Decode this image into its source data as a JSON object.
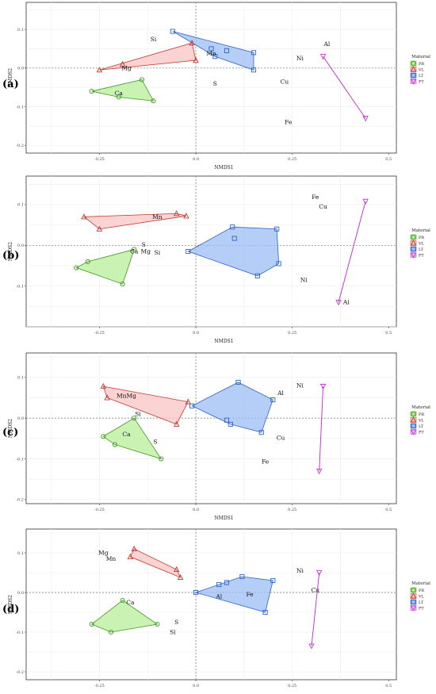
{
  "legend": {
    "title": "Material",
    "items": [
      {
        "label": "PR",
        "shape": "circle",
        "stroke": "#3e9a1e",
        "fill": "#b8ef9a"
      },
      {
        "label": "VL",
        "shape": "triangle",
        "stroke": "#c0392b",
        "fill": "#fbc4c4"
      },
      {
        "label": "LT",
        "shape": "square",
        "stroke": "#2e63c8",
        "fill": "#9cbdf5"
      },
      {
        "label": "PT",
        "shape": "triangle-down",
        "stroke": "#bf3fd0",
        "fill": "#e9b6f2"
      }
    ]
  },
  "chart_data": [
    {
      "panel_label": "(a)",
      "type": "scatter",
      "xlabel": "NMDS1",
      "ylabel": "NMDS2",
      "xlim": [
        -0.44,
        0.52
      ],
      "ylim": [
        -0.22,
        0.17
      ],
      "x_ticks": [
        "-0.25",
        "0.0",
        "0.25",
        "0.5"
      ],
      "x_tick_values": [
        -0.25,
        0,
        0.25,
        0.5
      ],
      "y_ticks": [
        "0.1",
        "0.0",
        "-0.1",
        "-0.2"
      ],
      "y_tick_values": [
        0.1,
        0,
        -0.1,
        -0.2
      ],
      "series": [
        {
          "name": "PR",
          "points": [
            [
              -0.27,
              -0.06
            ],
            [
              -0.2,
              -0.075
            ],
            [
              -0.14,
              -0.03
            ],
            [
              -0.11,
              -0.085
            ]
          ]
        },
        {
          "name": "VL",
          "points": [
            [
              -0.25,
              -0.005
            ],
            [
              -0.19,
              0.01
            ],
            [
              -0.01,
              0.065
            ],
            [
              0.0,
              0.02
            ]
          ]
        },
        {
          "name": "LT",
          "points": [
            [
              -0.06,
              0.095
            ],
            [
              0.04,
              0.05
            ],
            [
              0.05,
              0.03
            ],
            [
              0.08,
              0.045
            ],
            [
              0.15,
              0.04
            ],
            [
              0.15,
              -0.005
            ]
          ]
        },
        {
          "name": "PT",
          "points": [
            [
              0.33,
              0.03
            ],
            [
              0.44,
              -0.13
            ]
          ]
        }
      ],
      "labels": [
        {
          "text": "Si",
          "x": -0.11,
          "y": 0.075
        },
        {
          "text": "Mg",
          "x": -0.18,
          "y": 0.0
        },
        {
          "text": "Ca",
          "x": -0.2,
          "y": -0.065
        },
        {
          "text": "Mn",
          "x": 0.04,
          "y": 0.038
        },
        {
          "text": "S",
          "x": 0.05,
          "y": -0.04
        },
        {
          "text": "Al",
          "x": 0.34,
          "y": 0.062
        },
        {
          "text": "Ni",
          "x": 0.27,
          "y": 0.025
        },
        {
          "text": "Cu",
          "x": 0.23,
          "y": -0.035
        },
        {
          "text": "Fe",
          "x": 0.24,
          "y": -0.14
        }
      ]
    },
    {
      "panel_label": "(b)",
      "type": "scatter",
      "xlabel": "NMDS1",
      "ylabel": "NMDS2",
      "xlim": [
        -0.44,
        0.52
      ],
      "ylim": [
        -0.2,
        0.17
      ],
      "x_ticks": [
        "-0.25",
        "0.0",
        "0.25",
        "0.5"
      ],
      "x_tick_values": [
        -0.25,
        0,
        0.25,
        0.5
      ],
      "y_ticks": [
        "0.1",
        "0.0",
        "-0.1"
      ],
      "y_tick_values": [
        0.1,
        0,
        -0.1
      ],
      "series": [
        {
          "name": "PR",
          "points": [
            [
              -0.31,
              -0.055
            ],
            [
              -0.28,
              -0.04
            ],
            [
              -0.19,
              -0.095
            ],
            [
              -0.16,
              -0.01
            ]
          ]
        },
        {
          "name": "VL",
          "points": [
            [
              -0.29,
              0.07
            ],
            [
              -0.25,
              0.04
            ],
            [
              -0.05,
              0.078
            ],
            [
              -0.025,
              0.072
            ]
          ]
        },
        {
          "name": "LT",
          "points": [
            [
              -0.02,
              -0.015
            ],
            [
              0.095,
              0.045
            ],
            [
              0.1,
              0.017
            ],
            [
              0.21,
              0.04
            ],
            [
              0.215,
              -0.045
            ],
            [
              0.16,
              -0.075
            ]
          ]
        },
        {
          "name": "PT",
          "points": [
            [
              0.37,
              -0.14
            ],
            [
              0.44,
              0.108
            ]
          ]
        }
      ],
      "labels": [
        {
          "text": "Mn",
          "x": -0.1,
          "y": 0.07
        },
        {
          "text": "Ca",
          "x": -0.16,
          "y": -0.015
        },
        {
          "text": "Mg",
          "x": -0.13,
          "y": -0.015
        },
        {
          "text": "Si",
          "x": -0.1,
          "y": -0.018
        },
        {
          "text": "S",
          "x": -0.135,
          "y": 0.002
        },
        {
          "text": "Fe",
          "x": 0.31,
          "y": 0.118
        },
        {
          "text": "Cu",
          "x": 0.33,
          "y": 0.095
        },
        {
          "text": "Ni",
          "x": 0.28,
          "y": -0.085
        },
        {
          "text": "Al",
          "x": 0.39,
          "y": -0.14
        }
      ]
    },
    {
      "panel_label": "(c)",
      "type": "scatter",
      "xlabel": "NMDS1",
      "ylabel": "NMDS2",
      "xlim": [
        -0.44,
        0.52
      ],
      "ylim": [
        -0.21,
        0.16
      ],
      "x_ticks": [
        "-0.25",
        "0.0",
        "0.25",
        "0.5"
      ],
      "x_tick_values": [
        -0.25,
        0,
        0.25,
        0.5
      ],
      "y_ticks": [
        "0.1",
        "0.0",
        "-0.1",
        "-0.2"
      ],
      "y_tick_values": [
        0.1,
        0,
        -0.1,
        -0.2
      ],
      "series": [
        {
          "name": "PR",
          "points": [
            [
              -0.24,
              -0.045
            ],
            [
              -0.21,
              -0.065
            ],
            [
              -0.16,
              0.0
            ],
            [
              -0.09,
              -0.1
            ]
          ]
        },
        {
          "name": "VL",
          "points": [
            [
              -0.24,
              0.078
            ],
            [
              -0.23,
              0.05
            ],
            [
              -0.05,
              -0.015
            ],
            [
              -0.02,
              0.04
            ]
          ]
        },
        {
          "name": "LT",
          "points": [
            [
              -0.01,
              0.03
            ],
            [
              0.08,
              -0.005
            ],
            [
              0.09,
              -0.015
            ],
            [
              0.11,
              0.088
            ],
            [
              0.2,
              0.045
            ],
            [
              0.17,
              -0.035
            ]
          ]
        },
        {
          "name": "PT",
          "points": [
            [
              0.32,
              -0.13
            ],
            [
              0.33,
              0.078
            ]
          ]
        }
      ],
      "labels": [
        {
          "text": "MnMg",
          "x": -0.18,
          "y": 0.055
        },
        {
          "text": "Si",
          "x": -0.15,
          "y": 0.01
        },
        {
          "text": "Ca",
          "x": -0.18,
          "y": -0.04
        },
        {
          "text": "S",
          "x": -0.105,
          "y": -0.058
        },
        {
          "text": "Al",
          "x": 0.22,
          "y": 0.062
        },
        {
          "text": "Ni",
          "x": 0.27,
          "y": 0.08
        },
        {
          "text": "Cu",
          "x": 0.22,
          "y": -0.048
        },
        {
          "text": "Fe",
          "x": 0.18,
          "y": -0.107
        }
      ]
    },
    {
      "panel_label": "(d)",
      "type": "scatter",
      "xlabel": "NMDS1",
      "ylabel": "NMDS2",
      "xlim": [
        -0.44,
        0.52
      ],
      "ylim": [
        -0.22,
        0.16
      ],
      "x_ticks": [
        "-0.25",
        "0.0",
        "0.25",
        "0.5"
      ],
      "x_tick_values": [
        -0.25,
        0,
        0.25,
        0.5
      ],
      "y_ticks": [
        "0.1",
        "0.0",
        "-0.1",
        "-0.2"
      ],
      "y_tick_values": [
        0.1,
        0,
        -0.1,
        -0.2
      ],
      "series": [
        {
          "name": "PR",
          "points": [
            [
              -0.27,
              -0.08
            ],
            [
              -0.22,
              -0.1
            ],
            [
              -0.19,
              -0.02
            ],
            [
              -0.1,
              -0.08
            ]
          ]
        },
        {
          "name": "VL",
          "points": [
            [
              -0.17,
              0.09
            ],
            [
              -0.16,
              0.11
            ],
            [
              -0.05,
              0.058
            ],
            [
              -0.04,
              0.038
            ]
          ]
        },
        {
          "name": "LT",
          "points": [
            [
              0.0,
              0.0
            ],
            [
              0.06,
              0.02
            ],
            [
              0.08,
              0.025
            ],
            [
              0.12,
              0.04
            ],
            [
              0.2,
              0.03
            ],
            [
              0.18,
              -0.05
            ]
          ]
        },
        {
          "name": "PT",
          "points": [
            [
              0.3,
              -0.135
            ],
            [
              0.32,
              0.05
            ]
          ]
        }
      ],
      "labels": [
        {
          "text": "Mg",
          "x": -0.24,
          "y": 0.1
        },
        {
          "text": "Mn",
          "x": -0.22,
          "y": 0.085
        },
        {
          "text": "Ca",
          "x": -0.17,
          "y": -0.025
        },
        {
          "text": "S",
          "x": -0.05,
          "y": -0.075
        },
        {
          "text": "Si",
          "x": -0.06,
          "y": -0.1
        },
        {
          "text": "Al",
          "x": 0.06,
          "y": -0.01
        },
        {
          "text": "Fe",
          "x": 0.14,
          "y": -0.005
        },
        {
          "text": "Ni",
          "x": 0.27,
          "y": 0.055
        },
        {
          "text": "Cu",
          "x": 0.31,
          "y": 0.006
        }
      ]
    }
  ]
}
